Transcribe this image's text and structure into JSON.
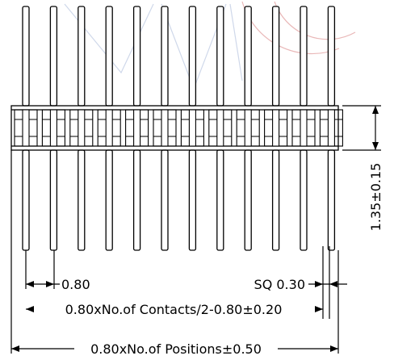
{
  "drawing": {
    "pin_count": 12,
    "line_color": "#000000",
    "watermark_color": "#cfd8ea",
    "watermark_accent": "#e9b7b7",
    "dimensions": {
      "pitch": "0.80",
      "pin_square": "SQ 0.30",
      "body_height": "1.35±0.15",
      "contacts_span": "0.80xNo.of Contacts/2-0.80±0.20",
      "overall_length": "0.80xNo.of Positions±0.50"
    }
  }
}
